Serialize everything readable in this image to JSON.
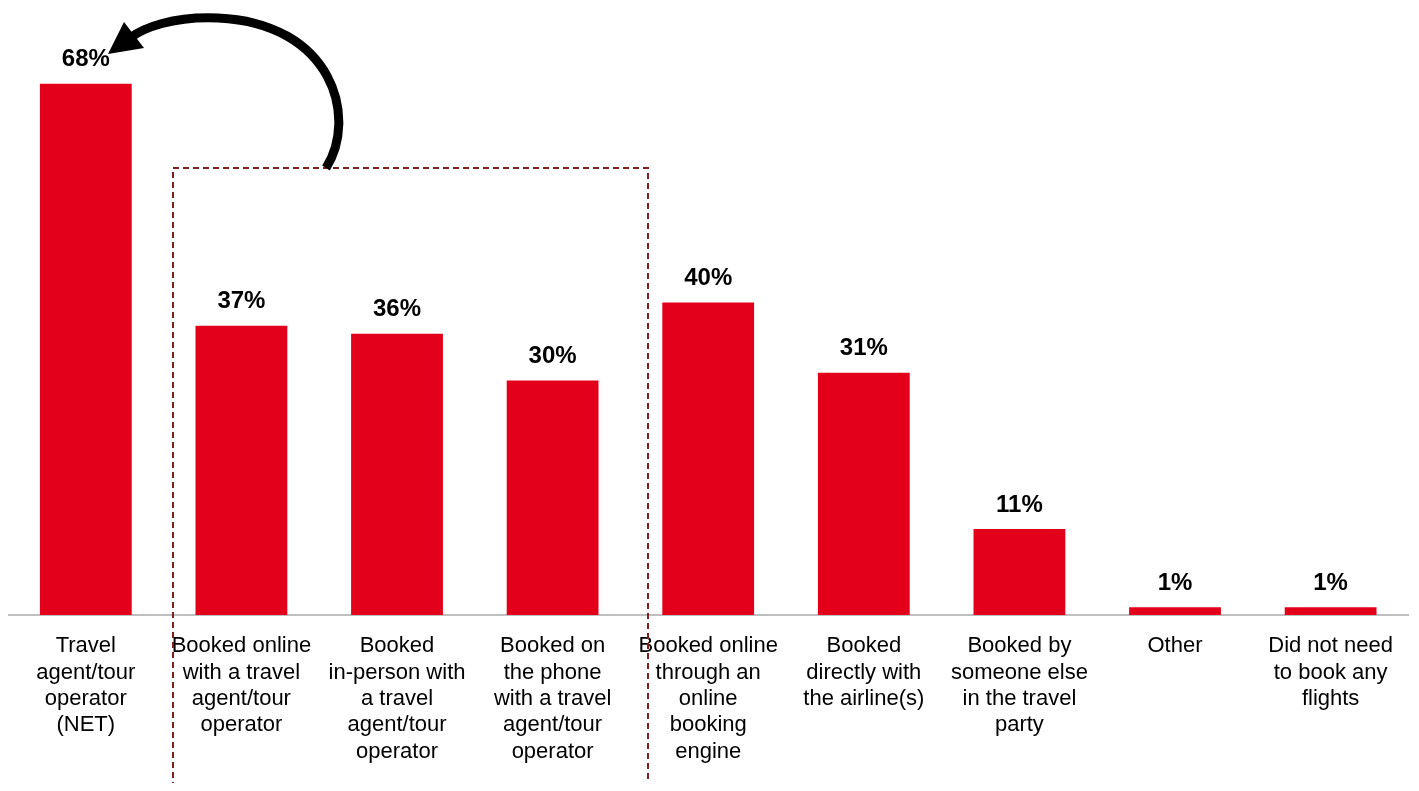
{
  "chart_data": {
    "type": "bar",
    "categories": [
      "Travel agent/tour operator (NET)",
      "Booked online with a travel agent/tour operator",
      "Booked in-person with a travel agent/tour operator",
      "Booked on the phone with a travel agent/tour operator",
      "Booked online through an online booking engine",
      "Booked directly with the airline(s)",
      "Booked by someone else in the travel party",
      "Other",
      "Did not need to book any flights"
    ],
    "values": [
      68,
      37,
      36,
      30,
      40,
      31,
      11,
      1,
      1
    ],
    "value_labels": [
      "68%",
      "37%",
      "36%",
      "30%",
      "40%",
      "31%",
      "11%",
      "1%",
      "1%"
    ],
    "color": "#e2001a",
    "grid": false,
    "legend": false
  }
}
